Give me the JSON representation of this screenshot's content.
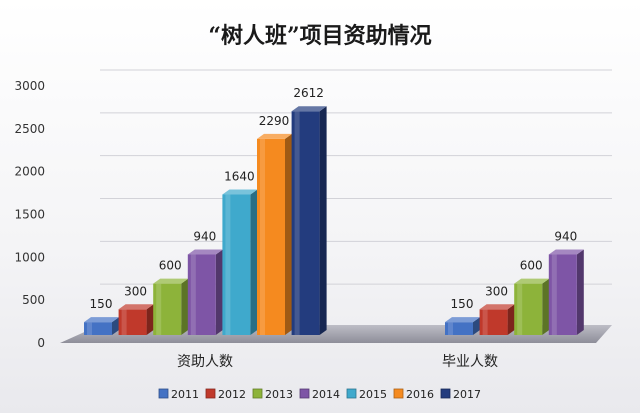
{
  "chart_data": {
    "type": "bar",
    "title": "“树人班”项目资助情况",
    "categories": [
      "资助人数",
      "毕业人数"
    ],
    "series": [
      {
        "name": "2011",
        "color": "#4472C4",
        "values": [
          150,
          150
        ]
      },
      {
        "name": "2012",
        "color": "#C0392B",
        "values": [
          300,
          300
        ]
      },
      {
        "name": "2013",
        "color": "#8DB33A",
        "values": [
          600,
          600
        ]
      },
      {
        "name": "2014",
        "color": "#7E55A6",
        "values": [
          940,
          940
        ]
      },
      {
        "name": "2015",
        "color": "#3FA9CC",
        "values": [
          1640,
          null
        ]
      },
      {
        "name": "2016",
        "color": "#F58A1F",
        "values": [
          2290,
          null
        ]
      },
      {
        "name": "2017",
        "color": "#233C7E",
        "values": [
          2612,
          null
        ]
      }
    ],
    "ylim": [
      0,
      3000
    ],
    "yticks": [
      "0",
      "500",
      "1000",
      "1500",
      "2000",
      "2500",
      "3000"
    ],
    "grid": true,
    "legend_position": "bottom",
    "data_labels": [
      [
        "150",
        "300",
        "600",
        "940",
        "1640",
        "2290",
        "2612"
      ],
      [
        "150",
        "300",
        "600",
        "940"
      ]
    ]
  }
}
